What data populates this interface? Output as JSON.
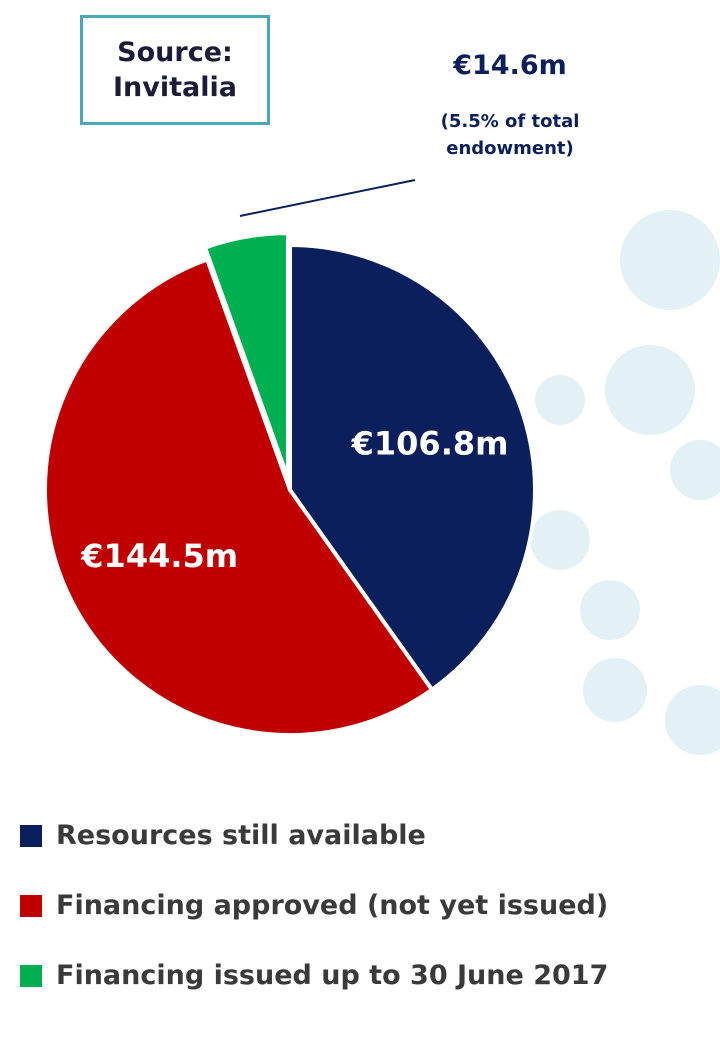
{
  "chart_data": {
    "type": "pie",
    "source": "Source: Invitalia",
    "categories": [
      "Resources still available",
      "Financing approved (not yet issued)",
      "Financing issued up to 30 June 2017"
    ],
    "values": [
      106.8,
      144.5,
      14.6
    ],
    "value_labels": [
      "€106.8m",
      "€144.5m",
      "€14.6m"
    ],
    "colors": [
      "#0a1f5c",
      "#c00000",
      "#00b050"
    ],
    "annotation": "(5.5% of total endowment)"
  }
}
